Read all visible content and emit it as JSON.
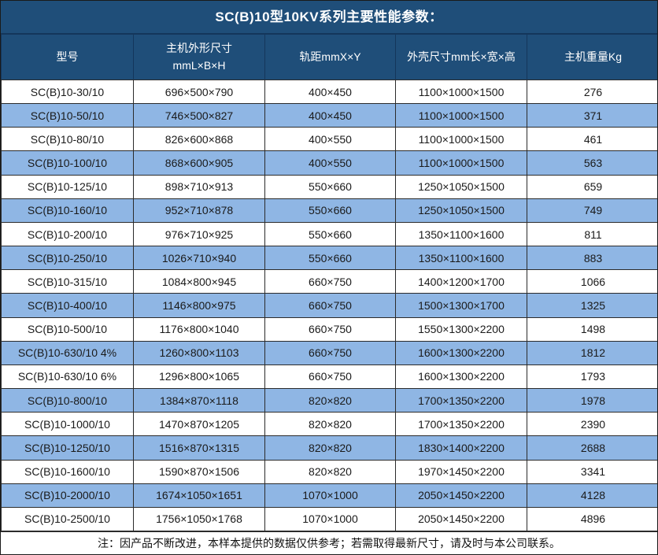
{
  "title": "SC(B)10型10KV系列主要性能参数：",
  "colors": {
    "header_bg": "#1F4E79",
    "header_text": "#FFFFFF",
    "alt_row_bg": "#8FB6E4",
    "row_bg": "#FFFFFF",
    "body_text": "#1A1A1A",
    "grid_line": "#2B2B2B"
  },
  "table": {
    "headers": [
      {
        "line1": "型号",
        "line2": ""
      },
      {
        "line1": "主机外形尺寸",
        "line2": "mmL×B×H"
      },
      {
        "line1": "轨距mmX×Y",
        "line2": ""
      },
      {
        "line1": "外壳尺寸mm长×宽×高",
        "line2": ""
      },
      {
        "line1": "主机重量Kg",
        "line2": ""
      }
    ],
    "rows": [
      [
        "SC(B)10-30/10",
        "696×500×790",
        "400×450",
        "1100×1000×1500",
        "276"
      ],
      [
        "SC(B)10-50/10",
        "746×500×827",
        "400×450",
        "1100×1000×1500",
        "371"
      ],
      [
        "SC(B)10-80/10",
        "826×600×868",
        "400×550",
        "1100×1000×1500",
        "461"
      ],
      [
        "SC(B)10-100/10",
        "868×600×905",
        "400×550",
        "1100×1000×1500",
        "563"
      ],
      [
        "SC(B)10-125/10",
        "898×710×913",
        "550×660",
        "1250×1050×1500",
        "659"
      ],
      [
        "SC(B)10-160/10",
        "952×710×878",
        "550×660",
        "1250×1050×1500",
        "749"
      ],
      [
        "SC(B)10-200/10",
        "976×710×925",
        "550×660",
        "1350×1100×1600",
        "811"
      ],
      [
        "SC(B)10-250/10",
        "1026×710×940",
        "550×660",
        "1350×1100×1600",
        "883"
      ],
      [
        "SC(B)10-315/10",
        "1084×800×945",
        "660×750",
        "1400×1200×1700",
        "1066"
      ],
      [
        "SC(B)10-400/10",
        "1146×800×975",
        "660×750",
        "1500×1300×1700",
        "1325"
      ],
      [
        "SC(B)10-500/10",
        "1176×800×1040",
        "660×750",
        "1550×1300×2200",
        "1498"
      ],
      [
        "SC(B)10-630/10 4%",
        "1260×800×1103",
        "660×750",
        "1600×1300×2200",
        "1812"
      ],
      [
        "SC(B)10-630/10 6%",
        "1296×800×1065",
        "660×750",
        "1600×1300×2200",
        "1793"
      ],
      [
        "SC(B)10-800/10",
        "1384×870×1118",
        "820×820",
        "1700×1350×2200",
        "1978"
      ],
      [
        "SC(B)10-1000/10",
        "1470×870×1205",
        "820×820",
        "1700×1350×2200",
        "2390"
      ],
      [
        "SC(B)10-1250/10",
        "1516×870×1315",
        "820×820",
        "1830×1400×2200",
        "2688"
      ],
      [
        "SC(B)10-1600/10",
        "1590×870×1506",
        "820×820",
        "1970×1450×2200",
        "3341"
      ],
      [
        "SC(B)10-2000/10",
        "1674×1050×1651",
        "1070×1000",
        "2050×1450×2200",
        "4128"
      ],
      [
        "SC(B)10-2500/10",
        "1756×1050×1768",
        "1070×1000",
        "2050×1450×2200",
        "4896"
      ]
    ]
  },
  "footer": {
    "note": "注：因产品不断改进，本样本提供的数据仅供参考；若需取得最新尺寸，请及时与本公司联系。"
  }
}
